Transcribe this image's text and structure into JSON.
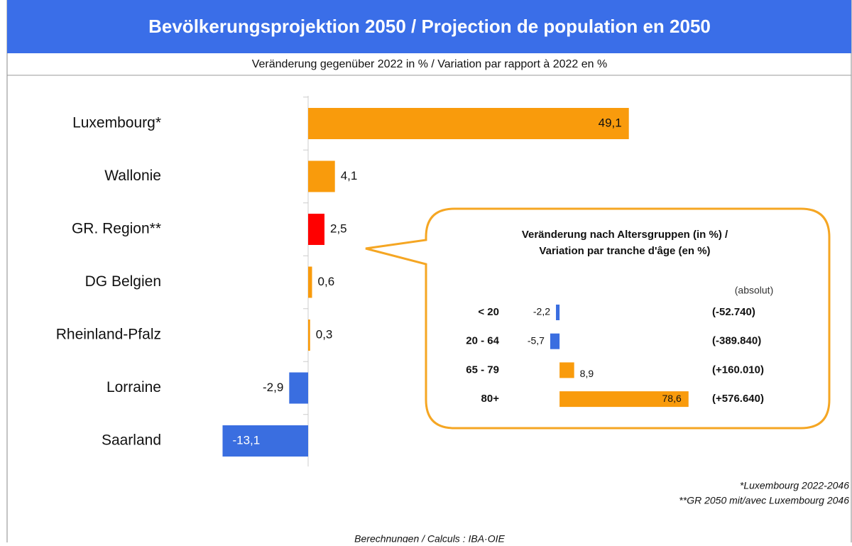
{
  "chart_data": [
    {
      "type": "bar",
      "orientation": "horizontal",
      "title": "Bevölkerungsprojektion 2050 / Projection de population en 2050",
      "subtitle": "Veränderung gegenüber 2022 in % / Variation par rapport à 2022 en %",
      "categories": [
        "Luxembourg*",
        "Wallonie",
        "GR. Region**",
        "DG Belgien",
        "Rheinland-Pfalz",
        "Lorraine",
        "Saarland"
      ],
      "values": [
        49.1,
        4.1,
        2.5,
        0.6,
        0.3,
        -2.9,
        -13.1
      ],
      "value_labels": [
        "49,1",
        "4,1",
        "2,5",
        "0,6",
        "0,3",
        "-2,9",
        "-13,1"
      ],
      "colors": [
        "#f99b0c",
        "#f99b0c",
        "#ff0000",
        "#f99b0c",
        "#f99b0c",
        "#3a6ee0",
        "#3a6ee0"
      ],
      "xlim": [
        -15,
        50
      ],
      "notes": [
        "*Luxembourg 2022-2046",
        "**GR 2050 mit/avec Luxembourg 2046"
      ],
      "source": "Berechnungen / Calculs : IBA·OIE"
    },
    {
      "type": "bar",
      "orientation": "horizontal",
      "title": [
        "Veränderung nach Altersgruppen (in %) /",
        "Variation par tranche d'âge (en %)"
      ],
      "absolute_header": "(absolut)",
      "categories": [
        "< 20",
        "20 - 64",
        "65 - 79",
        "80+"
      ],
      "values": [
        -2.2,
        -5.7,
        8.9,
        78.6
      ],
      "value_labels": [
        "-2,2",
        "-5,7",
        "8,9",
        "78,6"
      ],
      "absolute_labels": [
        "(-52.740)",
        "(-389.840)",
        "(+160.010)",
        "(+576.640)"
      ],
      "colors": [
        "#3a6ee0",
        "#3a6ee0",
        "#f99b0c",
        "#f99b0c"
      ],
      "xlim": [
        -10,
        80
      ]
    }
  ]
}
